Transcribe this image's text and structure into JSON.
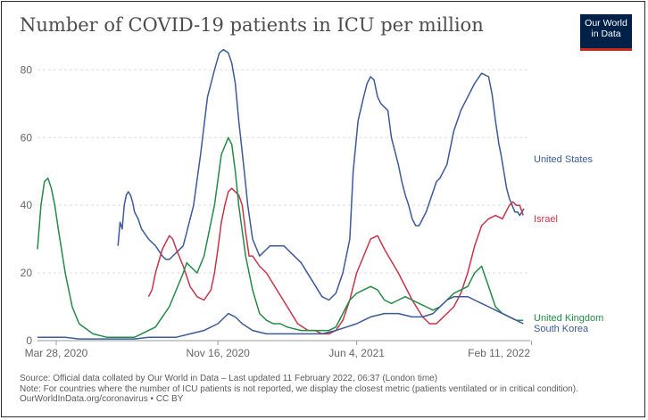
{
  "title": "Number of COVID-19 patients in ICU per million",
  "logo": {
    "line1": "Our World",
    "line2": "in Data"
  },
  "notes": {
    "source": "Source: Official data collated by Our World in Data – Last updated 11 February 2022, 06:37 (London time)",
    "note": "Note: For countries where the number of ICU patients is not reported, we display the closest metric (patients ventilated or in critical condition).",
    "credit": "OurWorldInData.org/coronavirus • CC BY"
  },
  "chart_data": {
    "type": "line",
    "title": "Number of COVID-19 patients in ICU per million",
    "xlabel": "",
    "ylabel": "",
    "x_unit": "days since 2020-03-01",
    "xlim": [
      0,
      710
    ],
    "ylim": [
      0,
      88
    ],
    "yticks": [
      0,
      20,
      40,
      60,
      80
    ],
    "xticks": [
      {
        "label": "Mar 28, 2020",
        "x": 27
      },
      {
        "label": "Nov 16, 2020",
        "x": 260
      },
      {
        "label": "Jun 4, 2021",
        "x": 460
      },
      {
        "label": "Feb 11, 2022",
        "x": 712
      }
    ],
    "grid": "horizontal-dashed",
    "legend": "inline-right",
    "series": [
      {
        "name": "United States",
        "color": "#3c5a97",
        "x": [
          116,
          119,
          122,
          125,
          128,
          131,
          134,
          137,
          140,
          145,
          150,
          160,
          170,
          180,
          185,
          190,
          195,
          200,
          210,
          215,
          225,
          235,
          245,
          255,
          262,
          268,
          275,
          280,
          285,
          290,
          298,
          303,
          310,
          320,
          325,
          330,
          335,
          340,
          348,
          355,
          360,
          365,
          380,
          395,
          410,
          420,
          430,
          440,
          450,
          455,
          462,
          470,
          475,
          480,
          485,
          490,
          495,
          505,
          510,
          520,
          525,
          530,
          535,
          540,
          545,
          550,
          560,
          570,
          575,
          580,
          585,
          590,
          595,
          600,
          610,
          620,
          630,
          640,
          650,
          655,
          660,
          665,
          668,
          672,
          676,
          680,
          684,
          688,
          692,
          695,
          698,
          701
        ],
        "y": [
          28,
          35,
          33,
          40,
          43,
          44,
          43,
          41,
          38,
          36,
          33,
          30,
          28,
          25,
          24,
          24,
          25,
          26,
          28,
          32,
          40,
          55,
          72,
          80,
          85,
          86,
          85,
          82,
          76,
          65,
          50,
          40,
          30,
          25,
          26,
          27,
          28,
          28,
          28,
          28,
          27,
          26,
          23,
          18,
          13,
          12,
          14,
          20,
          30,
          50,
          65,
          72,
          76,
          78,
          77,
          72,
          70,
          68,
          60,
          52,
          47,
          43,
          40,
          36,
          34,
          34,
          38,
          44,
          47,
          48,
          50,
          52,
          57,
          62,
          68,
          72,
          76,
          79,
          78,
          73,
          65,
          58,
          55,
          50,
          45,
          42,
          40,
          38,
          38,
          37,
          38,
          39
        ]
      },
      {
        "name": "Israel",
        "color": "#c9334a",
        "x": [
          160,
          165,
          170,
          180,
          190,
          195,
          200,
          210,
          220,
          230,
          240,
          250,
          255,
          260,
          265,
          270,
          275,
          280,
          290,
          295,
          300,
          305,
          310,
          320,
          330,
          345,
          360,
          375,
          390,
          400,
          410,
          420,
          430,
          440,
          450,
          460,
          470,
          480,
          490,
          500,
          520,
          540,
          555,
          565,
          575,
          580,
          590,
          600,
          610,
          620,
          630,
          640,
          650,
          660,
          670,
          680,
          685,
          690,
          695,
          700
        ],
        "y": [
          13,
          15,
          20,
          27,
          31,
          30,
          27,
          22,
          16,
          13,
          12,
          15,
          20,
          27,
          35,
          40,
          44,
          45,
          43,
          40,
          32,
          25,
          25,
          22,
          20,
          15,
          10,
          5,
          3,
          3,
          2,
          2,
          3,
          6,
          12,
          20,
          25,
          30,
          31,
          27,
          20,
          12,
          7,
          5,
          5,
          6,
          8,
          10,
          14,
          20,
          28,
          34,
          36,
          37,
          36,
          40,
          41,
          40,
          40,
          37
        ]
      },
      {
        "name": "United Kingdom",
        "color": "#238b45",
        "x": [
          0,
          5,
          10,
          15,
          20,
          25,
          30,
          40,
          50,
          60,
          80,
          100,
          120,
          140,
          150,
          160,
          170,
          180,
          190,
          200,
          210,
          215,
          220,
          230,
          240,
          245,
          255,
          265,
          275,
          280,
          285,
          290,
          300,
          310,
          320,
          330,
          340,
          350,
          360,
          380,
          400,
          420,
          430,
          440,
          450,
          460,
          470,
          480,
          490,
          500,
          510,
          520,
          530,
          540,
          550,
          560,
          570,
          580,
          590,
          600,
          610,
          620,
          625,
          630,
          640,
          650,
          660,
          670,
          680,
          690,
          695,
          700
        ],
        "y": [
          27,
          40,
          47,
          48,
          45,
          40,
          33,
          20,
          10,
          5,
          2,
          1,
          1,
          1,
          2,
          3,
          4,
          7,
          10,
          15,
          20,
          23,
          22,
          20,
          25,
          30,
          40,
          55,
          60,
          58,
          50,
          40,
          25,
          15,
          8,
          6,
          5,
          5,
          4,
          3,
          3,
          3,
          4,
          8,
          12,
          14,
          15,
          16,
          15,
          12,
          11,
          12,
          13,
          12,
          11,
          10,
          9,
          10,
          12,
          14,
          15,
          16,
          18,
          20,
          22,
          16,
          10,
          8,
          7,
          6,
          6,
          6
        ]
      },
      {
        "name": "South Korea",
        "color": "#3c5a97",
        "x": [
          0,
          20,
          40,
          60,
          80,
          100,
          120,
          140,
          160,
          180,
          200,
          220,
          240,
          260,
          275,
          285,
          295,
          310,
          330,
          350,
          370,
          390,
          410,
          430,
          445,
          460,
          470,
          480,
          500,
          520,
          540,
          555,
          570,
          580,
          590,
          600,
          610,
          620,
          630,
          640,
          650,
          660,
          670,
          680,
          690,
          700
        ],
        "y": [
          1,
          1,
          1,
          0.5,
          0.5,
          0.5,
          0.5,
          0.5,
          1,
          1,
          1,
          2,
          3,
          5,
          8,
          7,
          5,
          3,
          2,
          2,
          2,
          2,
          2,
          3,
          4,
          5,
          6,
          7,
          8,
          8,
          7,
          7,
          8,
          10,
          12,
          13,
          13,
          13,
          12,
          11,
          10,
          9,
          8,
          7,
          6,
          5
        ]
      }
    ]
  }
}
